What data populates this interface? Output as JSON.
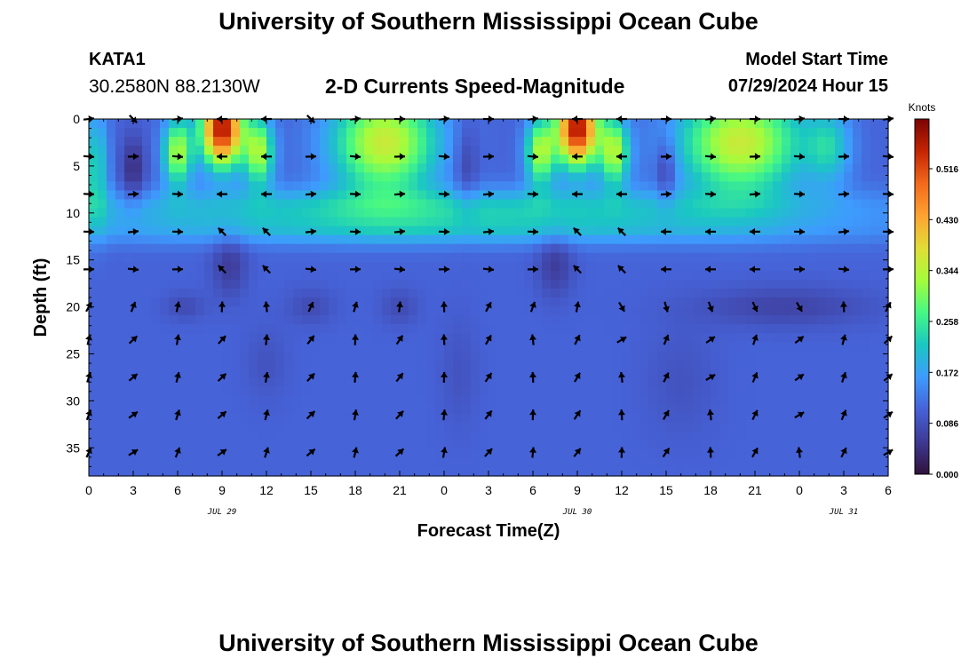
{
  "header": {
    "title": "University of Southern Mississippi Ocean Cube",
    "station_id": "KATA1",
    "station_coords": "30.2580N  88.2130W",
    "plot_title": "2-D Currents Speed-Magnitude",
    "start_label": "Model Start Time",
    "start_value": "07/29/2024 Hour 15"
  },
  "footer": {
    "title": "University of Southern Mississippi Ocean Cube"
  },
  "chart_data": {
    "type": "heatmap",
    "xlabel": "Forecast Time(Z)",
    "ylabel": "Depth (ft)",
    "x_range": [
      0,
      54
    ],
    "y_range": [
      0,
      38
    ],
    "y_inverted": true,
    "x_tick_labels": [
      "0",
      "3",
      "6",
      "9",
      "12",
      "15",
      "18",
      "21",
      "0",
      "3",
      "6",
      "9",
      "12",
      "15",
      "18",
      "21",
      "0",
      "3",
      "6"
    ],
    "y_ticks": [
      0,
      5,
      10,
      15,
      20,
      25,
      30,
      35
    ],
    "date_labels": [
      {
        "label": "JUL 29",
        "at_hour": 9
      },
      {
        "label": "JUL 30",
        "at_hour": 33
      },
      {
        "label": "JUL 31",
        "at_hour": 51
      }
    ],
    "colorbar": {
      "unit": "Knots",
      "ticks": [
        "0.000",
        "0.086",
        "0.172",
        "0.258",
        "0.344",
        "0.430",
        "0.516"
      ],
      "tick_values": [
        0,
        0.086,
        0.172,
        0.258,
        0.344,
        0.43,
        0.516
      ],
      "range": [
        0,
        0.6
      ],
      "colors": [
        "#30123b",
        "#3e3994",
        "#4662d7",
        "#3e9bfe",
        "#1ac7c2",
        "#46f884",
        "#a4fc3c",
        "#e1dd37",
        "#fea331",
        "#f36a1b",
        "#c42503",
        "#7a0403"
      ]
    },
    "arrow_depths_ft": [
      0,
      4,
      8,
      12,
      16,
      20,
      23.5,
      27.5,
      31.5,
      35.5
    ],
    "arrow_hours": [
      0,
      3,
      6,
      9,
      12,
      15,
      18,
      21,
      24,
      27,
      30,
      33,
      36,
      39,
      42,
      45,
      48,
      51,
      54
    ]
  }
}
